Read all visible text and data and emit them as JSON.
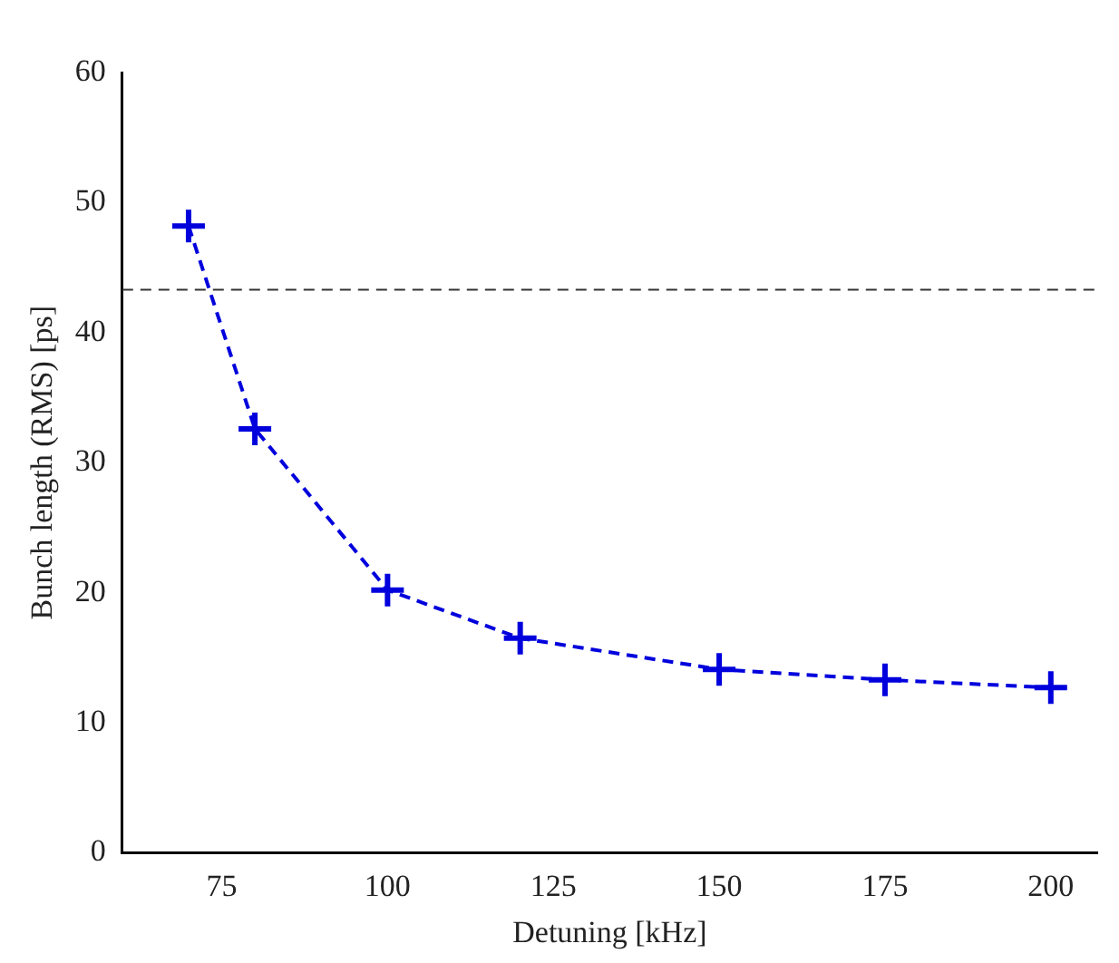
{
  "chart_data": {
    "type": "line",
    "xlabel": "Detuning [kHz]",
    "ylabel": "Bunch length (RMS) [ps]",
    "x": [
      70,
      80,
      100,
      120,
      150,
      175,
      200
    ],
    "series": [
      {
        "color": "#0000dd",
        "values": [
          48.2,
          32.6,
          20.2,
          16.5,
          14.1,
          13.3,
          12.7
        ]
      }
    ],
    "xlim": [
      60,
      207
    ],
    "xticks": [
      75,
      100,
      125,
      150,
      175,
      200
    ],
    "ylim": [
      0,
      60
    ],
    "yticks": [
      0,
      10,
      20,
      30,
      40,
      50,
      60
    ],
    "ref_lines": [
      {
        "axis": "y",
        "value": 43.3,
        "color": "#333333",
        "line_style": "dashed"
      }
    ],
    "grid": false,
    "legend": false,
    "marker": "cross",
    "line_style": "dashed"
  }
}
